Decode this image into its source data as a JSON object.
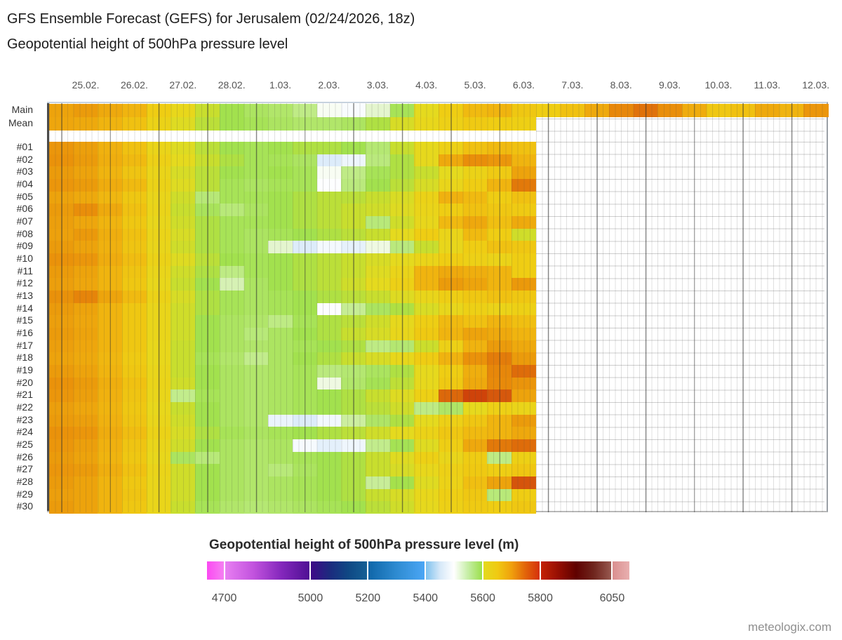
{
  "header": {
    "title": "GFS Ensemble Forecast (GEFS) for Jerusalem (02/24/2026, 18z)",
    "subtitle": "Geopotential height of 500hPa pressure level"
  },
  "watermark": "meteologix.com",
  "chart_data": {
    "type": "heatmap",
    "title": "GFS Ensemble Forecast (GEFS) for Jerusalem (02/24/2026, 18z)",
    "subtitle": "Geopotential height of 500hPa pressure level",
    "unit": "m",
    "x_labels": [
      "25.02.",
      "26.02.",
      "27.02.",
      "28.02.",
      "1.03.",
      "2.03.",
      "3.03.",
      "4.03.",
      "5.03.",
      "6.03.",
      "7.03.",
      "8.03.",
      "9.03.",
      "10.03.",
      "11.03.",
      "12.03."
    ],
    "hours_total": 384,
    "member_hours": 240,
    "cell_hours": 12,
    "row_labels": [
      "Main",
      "Mean",
      "#01",
      "#02",
      "#03",
      "#04",
      "#05",
      "#06",
      "#07",
      "#08",
      "#09",
      "#10",
      "#11",
      "#12",
      "#13",
      "#14",
      "#15",
      "#16",
      "#17",
      "#18",
      "#19",
      "#20",
      "#21",
      "#22",
      "#23",
      "#24",
      "#25",
      "#26",
      "#27",
      "#28",
      "#29",
      "#30"
    ],
    "rows": [
      {
        "label": "Main",
        "values": [
          5730,
          5740,
          5720,
          5700,
          5660,
          5630,
          5600,
          5585,
          5575,
          5570,
          5555,
          5505,
          5495,
          5520,
          5580,
          5620,
          5660,
          5690,
          5700,
          5670,
          5660,
          5680,
          5720,
          5760,
          5775,
          5755,
          5715,
          5670,
          5680,
          5720,
          5700,
          5745
        ]
      },
      {
        "label": "Mean",
        "values": [
          5725,
          5720,
          5700,
          5680,
          5645,
          5615,
          5595,
          5585,
          5580,
          5575,
          5570,
          5570,
          5575,
          5590,
          5610,
          5630,
          5650,
          5665,
          5660,
          5655
        ]
      },
      {
        "label": "#01",
        "values": [
          5745,
          5735,
          5705,
          5680,
          5640,
          5615,
          5595,
          5585,
          5580,
          5585,
          5590,
          5590,
          5585,
          5565,
          5600,
          5625,
          5650,
          5680,
          5690,
          5680
        ]
      },
      {
        "label": "#02",
        "values": [
          5750,
          5740,
          5710,
          5690,
          5650,
          5620,
          5600,
          5590,
          5580,
          5580,
          5575,
          5470,
          5485,
          5560,
          5590,
          5625,
          5720,
          5755,
          5745,
          5700
        ]
      },
      {
        "label": "#03",
        "values": [
          5740,
          5730,
          5700,
          5675,
          5640,
          5610,
          5595,
          5585,
          5580,
          5585,
          5580,
          5505,
          5555,
          5580,
          5590,
          5600,
          5620,
          5645,
          5665,
          5730
        ]
      },
      {
        "label": "#04",
        "values": [
          5745,
          5740,
          5715,
          5690,
          5645,
          5615,
          5595,
          5580,
          5575,
          5580,
          5580,
          5498,
          5560,
          5585,
          5595,
          5610,
          5635,
          5660,
          5700,
          5770
        ]
      },
      {
        "label": "#05",
        "values": [
          5730,
          5720,
          5695,
          5670,
          5635,
          5605,
          5563,
          5580,
          5580,
          5585,
          5590,
          5595,
          5595,
          5600,
          5612,
          5645,
          5705,
          5690,
          5660,
          5680
        ]
      },
      {
        "label": "#06",
        "values": [
          5740,
          5755,
          5720,
          5680,
          5640,
          5600,
          5578,
          5562,
          5575,
          5585,
          5590,
          5595,
          5600,
          5605,
          5615,
          5638,
          5660,
          5680,
          5670,
          5665
        ]
      },
      {
        "label": "#07",
        "values": [
          5735,
          5725,
          5700,
          5670,
          5632,
          5605,
          5590,
          5580,
          5580,
          5585,
          5590,
          5595,
          5600,
          5562,
          5605,
          5632,
          5692,
          5722,
          5682,
          5718
        ]
      },
      {
        "label": "#08",
        "values": [
          5732,
          5742,
          5710,
          5680,
          5640,
          5610,
          5590,
          5580,
          5575,
          5580,
          5585,
          5590,
          5595,
          5600,
          5620,
          5660,
          5640,
          5690,
          5660,
          5605
        ]
      },
      {
        "label": "#09",
        "values": [
          5740,
          5730,
          5705,
          5675,
          5635,
          5605,
          5590,
          5580,
          5575,
          5520,
          5470,
          5490,
          5478,
          5512,
          5560,
          5600,
          5632,
          5660,
          5680,
          5670
        ]
      },
      {
        "label": "#10",
        "values": [
          5750,
          5745,
          5715,
          5685,
          5645,
          5615,
          5595,
          5585,
          5580,
          5585,
          5590,
          5595,
          5600,
          5610,
          5620,
          5640,
          5660,
          5650,
          5642,
          5660
        ]
      },
      {
        "label": "#11",
        "values": [
          5740,
          5730,
          5700,
          5675,
          5635,
          5605,
          5590,
          5556,
          5580,
          5585,
          5590,
          5595,
          5600,
          5615,
          5640,
          5700,
          5720,
          5710,
          5700,
          5660
        ]
      },
      {
        "label": "#12",
        "values": [
          5735,
          5725,
          5700,
          5670,
          5630,
          5600,
          5585,
          5532,
          5575,
          5585,
          5590,
          5595,
          5605,
          5620,
          5650,
          5700,
          5740,
          5728,
          5700,
          5742
        ]
      },
      {
        "label": "#13",
        "values": [
          5752,
          5762,
          5728,
          5690,
          5645,
          5610,
          5590,
          5580,
          5575,
          5580,
          5585,
          5590,
          5595,
          5600,
          5615,
          5636,
          5656,
          5670,
          5680,
          5670
        ]
      },
      {
        "label": "#14",
        "values": [
          5740,
          5730,
          5700,
          5670,
          5635,
          5605,
          5590,
          5580,
          5575,
          5580,
          5585,
          5497,
          5548,
          5576,
          5590,
          5612,
          5632,
          5652,
          5642,
          5652
        ]
      },
      {
        "label": "#15",
        "values": [
          5735,
          5725,
          5700,
          5670,
          5635,
          5605,
          5585,
          5575,
          5570,
          5556,
          5580,
          5590,
          5595,
          5605,
          5625,
          5656,
          5690,
          5680,
          5700,
          5682
        ]
      },
      {
        "label": "#16",
        "values": [
          5740,
          5730,
          5700,
          5670,
          5635,
          5605,
          5585,
          5575,
          5562,
          5575,
          5585,
          5590,
          5600,
          5610,
          5632,
          5666,
          5700,
          5730,
          5720,
          5700
        ]
      },
      {
        "label": "#17",
        "values": [
          5735,
          5725,
          5700,
          5670,
          5630,
          5600,
          5585,
          5575,
          5570,
          5575,
          5580,
          5585,
          5590,
          5556,
          5566,
          5602,
          5650,
          5702,
          5740,
          5720
        ]
      },
      {
        "label": "#18",
        "values": [
          5730,
          5720,
          5695,
          5665,
          5630,
          5600,
          5580,
          5570,
          5552,
          5575,
          5585,
          5590,
          5600,
          5610,
          5630,
          5662,
          5702,
          5750,
          5768,
          5740
        ]
      },
      {
        "label": "#19",
        "values": [
          5740,
          5730,
          5700,
          5670,
          5635,
          5600,
          5585,
          5575,
          5570,
          5575,
          5580,
          5560,
          5566,
          5576,
          5590,
          5622,
          5660,
          5710,
          5760,
          5778
        ]
      },
      {
        "label": "#20",
        "values": [
          5750,
          5740,
          5710,
          5680,
          5640,
          5605,
          5585,
          5575,
          5570,
          5575,
          5580,
          5512,
          5570,
          5582,
          5596,
          5626,
          5666,
          5720,
          5758,
          5748
        ]
      },
      {
        "label": "#21",
        "values": [
          5745,
          5735,
          5705,
          5675,
          5635,
          5552,
          5580,
          5575,
          5570,
          5575,
          5580,
          5585,
          5590,
          5600,
          5615,
          5652,
          5780,
          5798,
          5788,
          5730
        ]
      },
      {
        "label": "#22",
        "values": [
          5735,
          5725,
          5700,
          5670,
          5630,
          5600,
          5585,
          5575,
          5570,
          5575,
          5580,
          5585,
          5590,
          5595,
          5605,
          5556,
          5572,
          5622,
          5650,
          5640
        ]
      },
      {
        "label": "#23",
        "values": [
          5740,
          5735,
          5705,
          5675,
          5635,
          5605,
          5585,
          5575,
          5570,
          5482,
          5470,
          5488,
          5542,
          5572,
          5590,
          5620,
          5650,
          5672,
          5700,
          5740
        ]
      },
      {
        "label": "#24",
        "values": [
          5750,
          5745,
          5715,
          5685,
          5645,
          5610,
          5590,
          5580,
          5575,
          5580,
          5585,
          5590,
          5595,
          5605,
          5620,
          5645,
          5670,
          5690,
          5700,
          5722
        ]
      },
      {
        "label": "#25",
        "values": [
          5745,
          5735,
          5705,
          5675,
          5635,
          5605,
          5585,
          5575,
          5570,
          5575,
          5492,
          5476,
          5486,
          5552,
          5582,
          5616,
          5656,
          5722,
          5770,
          5778
        ]
      },
      {
        "label": "#26",
        "values": [
          5740,
          5730,
          5700,
          5670,
          5630,
          5576,
          5562,
          5575,
          5570,
          5575,
          5580,
          5585,
          5590,
          5600,
          5616,
          5652,
          5636,
          5662,
          5556,
          5652
        ]
      },
      {
        "label": "#27",
        "values": [
          5745,
          5740,
          5710,
          5680,
          5640,
          5605,
          5585,
          5575,
          5570,
          5562,
          5576,
          5585,
          5590,
          5600,
          5610,
          5630,
          5650,
          5666,
          5656,
          5670
        ]
      },
      {
        "label": "#28",
        "values": [
          5740,
          5730,
          5700,
          5670,
          5635,
          5605,
          5585,
          5575,
          5570,
          5575,
          5580,
          5585,
          5590,
          5546,
          5586,
          5616,
          5646,
          5682,
          5730,
          5790
        ]
      },
      {
        "label": "#29",
        "values": [
          5735,
          5730,
          5700,
          5675,
          5635,
          5605,
          5585,
          5575,
          5570,
          5575,
          5580,
          5585,
          5590,
          5600,
          5610,
          5630,
          5655,
          5670,
          5562,
          5660
        ]
      },
      {
        "label": "#30",
        "values": [
          5740,
          5730,
          5700,
          5670,
          5635,
          5600,
          5580,
          5570,
          5565,
          5570,
          5575,
          5580,
          5585,
          5595,
          5605,
          5625,
          5650,
          5665,
          5660,
          5670
        ]
      }
    ],
    "colormap_anchors": [
      [
        5380,
        "#6fb8ec"
      ],
      [
        5420,
        "#a5d2f4"
      ],
      [
        5460,
        "#d2e6f8"
      ],
      [
        5500,
        "#ffffff"
      ],
      [
        5525,
        "#ddf3c2"
      ],
      [
        5555,
        "#bfeb86"
      ],
      [
        5585,
        "#a2e14e"
      ],
      [
        5600,
        "#c8de2e"
      ],
      [
        5620,
        "#e5da1e"
      ],
      [
        5660,
        "#efcd13"
      ],
      [
        5700,
        "#f0b40f"
      ],
      [
        5730,
        "#eda30c"
      ],
      [
        5755,
        "#e98e0a"
      ],
      [
        5775,
        "#e0720a"
      ],
      [
        5790,
        "#d5540c"
      ],
      [
        5805,
        "#c93408"
      ],
      [
        5830,
        "#ad1a04"
      ],
      [
        5860,
        "#8c0c02"
      ]
    ],
    "legend": {
      "title": "Geopotential height of 500hPa pressure level (m)",
      "tick_values": [
        4700,
        5000,
        5200,
        5400,
        5600,
        5800,
        6050
      ],
      "range": [
        4640,
        6110
      ],
      "segments": [
        {
          "from": 4640,
          "to": 4700,
          "stops": [
            "#fb49f2",
            "#f580f2"
          ]
        },
        {
          "from": 4700,
          "to": 5000,
          "stops": [
            "#e87ff2",
            "#c253de",
            "#8427bc",
            "#4f1094"
          ]
        },
        {
          "from": 5000,
          "to": 5200,
          "stops": [
            "#3f0a88",
            "#1c2a7e",
            "#0f4884",
            "#156095"
          ]
        },
        {
          "from": 5200,
          "to": 5400,
          "stops": [
            "#0f66a8",
            "#2e8bd1",
            "#4ba6f5"
          ]
        },
        {
          "from": 5400,
          "to": 5600,
          "stops": [
            "#7fc2ee",
            "#d6e8f8",
            "#ffffff",
            "#c6eea6",
            "#9bdf4b"
          ]
        },
        {
          "from": 5600,
          "to": 5800,
          "stops": [
            "#e3da1f",
            "#f0ca12",
            "#f0a00c",
            "#e2640a",
            "#d5300a"
          ]
        },
        {
          "from": 5800,
          "to": 6050,
          "stops": [
            "#c52306",
            "#950e02",
            "#600100",
            "#6f251d",
            "#97584f"
          ]
        },
        {
          "from": 6050,
          "to": 6110,
          "stops": [
            "#d98f8f",
            "#e9b0b0"
          ]
        }
      ]
    },
    "legend_position": "bottom",
    "grid": true
  }
}
